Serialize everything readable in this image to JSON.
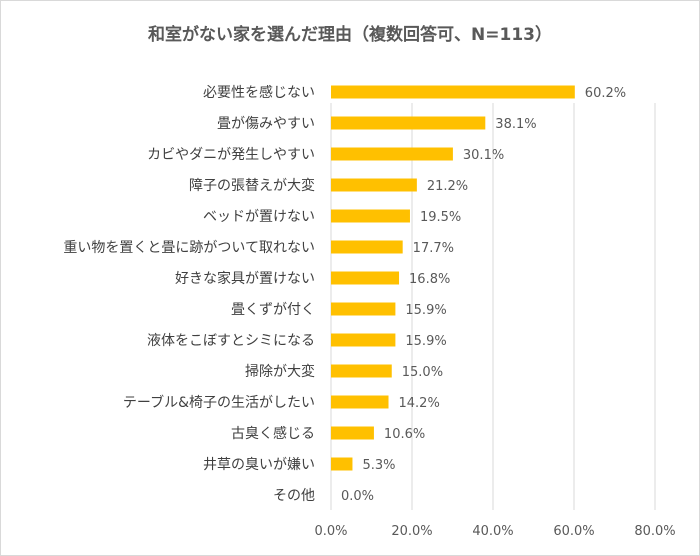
{
  "chart_data": {
    "type": "bar",
    "orientation": "horizontal",
    "title": "和室がない家を選んだ理由（複数回答可、N=113）",
    "categories": [
      "必要性を感じない",
      "畳が傷みやすい",
      "カビやダニが発生しやすい",
      "障子の張替えが大変",
      "ベッドが置けない",
      "重い物を置くと畳に跡がついて取れない",
      "好きな家具が置けない",
      "畳くずが付く",
      "液体をこぼすとシミになる",
      "掃除が大変",
      "テーブル&椅子の生活がしたい",
      "古臭く感じる",
      "井草の臭いが嫌い",
      "その他"
    ],
    "values": [
      60.2,
      38.1,
      30.1,
      21.2,
      19.5,
      17.7,
      16.8,
      15.9,
      15.9,
      15.0,
      14.2,
      10.6,
      5.3,
      0.0
    ],
    "data_labels": [
      "60.2%",
      "38.1%",
      "30.1%",
      "21.2%",
      "19.5%",
      "17.7%",
      "16.8%",
      "15.9%",
      "15.9%",
      "15.0%",
      "14.2%",
      "10.6%",
      "5.3%",
      "0.0%"
    ],
    "xlim": [
      0,
      80
    ],
    "xticks": [
      "0.0%",
      "20.0%",
      "40.0%",
      "60.0%",
      "80.0%"
    ],
    "grid": true,
    "xlabel": "",
    "ylabel": "",
    "bar_color": "#ffc000",
    "grid_color": "#d9d9d9"
  }
}
